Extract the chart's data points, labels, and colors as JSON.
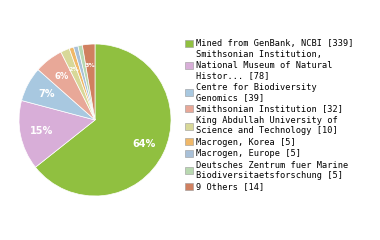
{
  "labels": [
    "Mined from GenBank, NCBI [339]",
    "Smithsonian Institution,\nNational Museum of Natural\nHistor... [78]",
    "Centre for Biodiversity\nGenomics [39]",
    "Smithsonian Institution [32]",
    "King Abdullah University of\nScience and Technology [10]",
    "Macrogen, Korea [5]",
    "Macrogen, Europe [5]",
    "Deutsches Zentrum fuer Marine\nBiodiversitaetsforschung [5]",
    "9 Others [14]"
  ],
  "values": [
    339,
    78,
    39,
    32,
    10,
    5,
    5,
    5,
    14
  ],
  "colors": [
    "#90c040",
    "#d8aed8",
    "#a8c8e0",
    "#e8a898",
    "#d8d898",
    "#f0b868",
    "#a8c0d8",
    "#b8d8b0",
    "#d08060"
  ],
  "legend_fontsize": 6.2,
  "figsize": [
    3.8,
    2.4
  ],
  "dpi": 100
}
